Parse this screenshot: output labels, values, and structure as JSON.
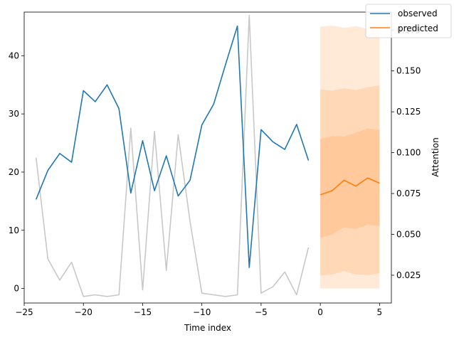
{
  "chart_data": {
    "type": "line",
    "title": "",
    "xlabel": "Time index",
    "ylabel_left": "",
    "ylabel_right": "Attention",
    "xlim": [
      -25,
      6
    ],
    "ylim_left": [
      -2.5,
      47.5
    ],
    "ylim_right": [
      0.008,
      0.186
    ],
    "x_ticks": [
      -25,
      -20,
      -15,
      -10,
      -5,
      0,
      5
    ],
    "y_ticks_left": [
      0,
      10,
      20,
      30,
      40
    ],
    "y_ticks_right": [
      0.025,
      0.05,
      0.075,
      0.1,
      0.125,
      0.15,
      0.175
    ],
    "legend": {
      "placement": "top-right",
      "entries": [
        "observed",
        "predicted"
      ]
    },
    "colors": {
      "observed": "#1f77b4",
      "predicted": "#ff7f0e",
      "attention": "#c8c8c8",
      "band": "#ff7f0e"
    },
    "grid": false,
    "series": [
      {
        "name": "observed",
        "axis": "left",
        "x": [
          -24,
          -23,
          -22,
          -21,
          -20,
          -19,
          -18,
          -17,
          -16,
          -15,
          -14,
          -13,
          -12,
          -11,
          -10,
          -9,
          -8,
          -7,
          -6,
          -5,
          -4,
          -3,
          -2,
          -1
        ],
        "values": [
          15.3,
          20.3,
          23.2,
          21.7,
          34.0,
          32.1,
          35.0,
          30.9,
          16.4,
          25.4,
          16.8,
          22.8,
          15.9,
          18.6,
          28.1,
          31.7,
          38.5,
          45.1,
          3.6,
          27.3,
          25.2,
          23.9,
          28.2,
          22.0
        ]
      },
      {
        "name": "predicted",
        "axis": "left",
        "x": [
          0,
          1,
          2,
          3,
          4,
          5
        ],
        "values": [
          16.1,
          16.8,
          18.6,
          17.6,
          19.0,
          18.1
        ]
      },
      {
        "name": "attention",
        "axis": "right",
        "x": [
          -24,
          -23,
          -22,
          -21,
          -20,
          -19,
          -18,
          -17,
          -16,
          -15,
          -14,
          -13,
          -12,
          -11,
          -10,
          -9,
          -8,
          -7,
          -6,
          -5,
          -4,
          -3,
          -2,
          -1
        ],
        "values": [
          0.097,
          0.035,
          0.022,
          0.033,
          0.012,
          0.013,
          0.012,
          0.013,
          0.115,
          0.016,
          0.113,
          0.028,
          0.111,
          0.058,
          0.014,
          0.013,
          0.012,
          0.013,
          0.184,
          0.014,
          0.018,
          0.027,
          0.013,
          0.042
        ]
      }
    ],
    "prediction_bands": {
      "x": [
        0,
        1,
        2,
        3,
        4,
        5
      ],
      "bands": [
        {
          "lower": [
            0.0,
            0.0,
            0.0,
            0.0,
            0.0,
            0.0
          ],
          "upper": [
            45.0,
            45.2,
            44.8,
            45.1,
            44.6,
            44.8
          ]
        },
        {
          "lower": [
            2.2,
            2.4,
            3.0,
            2.4,
            2.3,
            2.6
          ],
          "upper": [
            34.2,
            34.0,
            34.4,
            34.1,
            34.6,
            34.9
          ]
        },
        {
          "lower": [
            8.7,
            9.3,
            10.5,
            10.2,
            11.0,
            10.7
          ],
          "upper": [
            25.7,
            26.2,
            26.1,
            26.8,
            27.5,
            27.2
          ]
        }
      ]
    }
  }
}
